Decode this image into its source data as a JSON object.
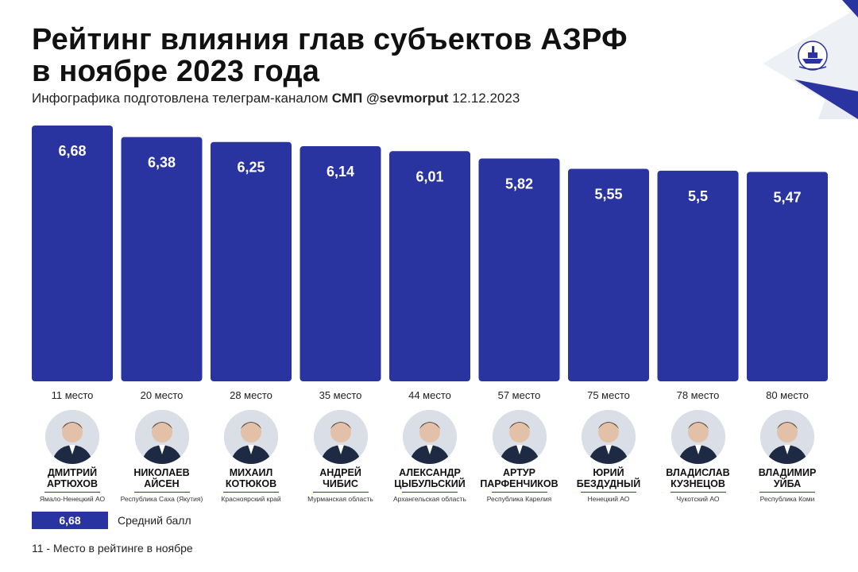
{
  "header": {
    "title_line1": "Рейтинг влияния глав субъектов АЗРФ",
    "title_line2": "в ноябре 2023 года",
    "subtitle_prefix": "Инфографика подготовлена телеграм-каналом",
    "subtitle_channel": "СМП @sevmorput",
    "subtitle_date": "12.12.2023"
  },
  "colors": {
    "bar": "#2a34a0",
    "accent": "#2a34a0"
  },
  "chart_data": {
    "type": "bar",
    "title": "Рейтинг влияния глав субъектов АЗРФ в ноябре 2023 года",
    "xlabel": "",
    "ylabel": "",
    "categories": [
      "Дмитрий Артюхов",
      "Николаев Айсен",
      "Михаил Котюков",
      "Андрей Чибис",
      "Александр Цыбульский",
      "Артур Парфенчиков",
      "Юрий Бездудный",
      "Владислав Кузнецов",
      "Владимир Уйба"
    ],
    "values": [
      6.68,
      6.38,
      6.25,
      6.14,
      6.01,
      5.82,
      5.55,
      5.5,
      5.47
    ],
    "value_labels": [
      "6,68",
      "6,38",
      "6,25",
      "6,14",
      "6,01",
      "5,82",
      "5,55",
      "5,5",
      "5,47"
    ],
    "ylim": [
      0,
      6.68
    ],
    "grid": false,
    "legend": "bottom-left"
  },
  "people": [
    {
      "rank": "11 место",
      "name1": "ДМИТРИЙ",
      "name2": "АРТЮХОВ",
      "region": "Ямало-Ненецкий АО"
    },
    {
      "rank": "20 место",
      "name1": "НИКОЛАЕВ",
      "name2": "АЙСЕН",
      "region": "Республика Саха (Якутия)"
    },
    {
      "rank": "28 место",
      "name1": "МИХАИЛ",
      "name2": "КОТЮКОВ",
      "region": "Красноярский край"
    },
    {
      "rank": "35 место",
      "name1": "АНДРЕЙ",
      "name2": "ЧИБИС",
      "region": "Мурманская область"
    },
    {
      "rank": "44 место",
      "name1": "АЛЕКСАНДР",
      "name2": "ЦЫБУЛЬСКИЙ",
      "region": "Архангельская область"
    },
    {
      "rank": "57 место",
      "name1": "АРТУР",
      "name2": "ПАРФЕНЧИКОВ",
      "region": "Республика Карелия"
    },
    {
      "rank": "75 место",
      "name1": "ЮРИЙ",
      "name2": "БЕЗДУДНЫЙ",
      "region": "Ненецкий АО"
    },
    {
      "rank": "78 место",
      "name1": "ВЛАДИСЛАВ",
      "name2": "КУЗНЕЦОВ",
      "region": "Чукотский АО"
    },
    {
      "rank": "80 место",
      "name1": "ВЛАДИМИР",
      "name2": "УЙБА",
      "region": "Республика Коми"
    }
  ],
  "legend": {
    "box_value": "6,68",
    "box_label": "Средний балл"
  },
  "note": "11 - Место в рейтинге в ноябре"
}
